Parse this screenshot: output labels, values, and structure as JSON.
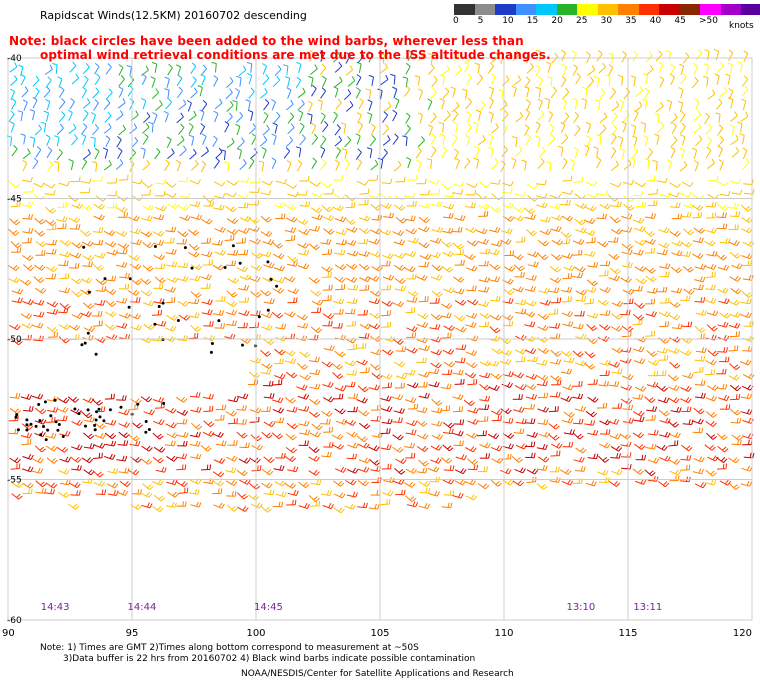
{
  "title": "Rapidscat Winds(12.5KM) 20160702 descending",
  "note": {
    "line1": "Note: black circles have been added to the wind barbs, wherever less than",
    "line2": "optimal wind retrieval conditions are met due to the ISS altitude changes."
  },
  "legend": {
    "labels": [
      "0",
      "5",
      "10",
      "15",
      "20",
      "25",
      "30",
      "35",
      "40",
      "45",
      ">50"
    ],
    "unit": "knots",
    "colors": [
      "#333333",
      "#8c8c8c",
      "#1e3cc8",
      "#4090ff",
      "#00c8ff",
      "#28b428",
      "#ffff00",
      "#ffc000",
      "#ff8000",
      "#ff3000",
      "#c80000",
      "#8b2500",
      "#ff00ff",
      "#a000c8",
      "#5a00a0"
    ]
  },
  "axes": {
    "x_ticks": [
      "90",
      "95",
      "100",
      "105",
      "110",
      "115",
      "120"
    ],
    "y_ticks": [
      "-40",
      "-45",
      "-50",
      "-55",
      "-60"
    ],
    "lon_range": [
      90,
      120
    ],
    "lat_range": [
      -60,
      -40
    ]
  },
  "times": [
    {
      "label": "14:43",
      "lon": 91.9
    },
    {
      "label": "14:44",
      "lon": 95.4
    },
    {
      "label": "14:45",
      "lon": 100.5
    },
    {
      "label": "13:10",
      "lon": 113.1
    },
    {
      "label": "13:11",
      "lon": 115.8
    }
  ],
  "footer": {
    "line1": "Note: 1) Times are GMT 2)Times along bottom correspond to measurement at ~50S",
    "line2": "3)Data buffer is 22 hrs from 20160702 4) Black wind barbs indicate possible contamination",
    "line3": "NOAA/NESDIS/Center for Satellite Applications and Research"
  },
  "colors": {
    "time_label": "#7a1fa0",
    "note": "#ff0000",
    "grid": "#cccccc"
  }
}
